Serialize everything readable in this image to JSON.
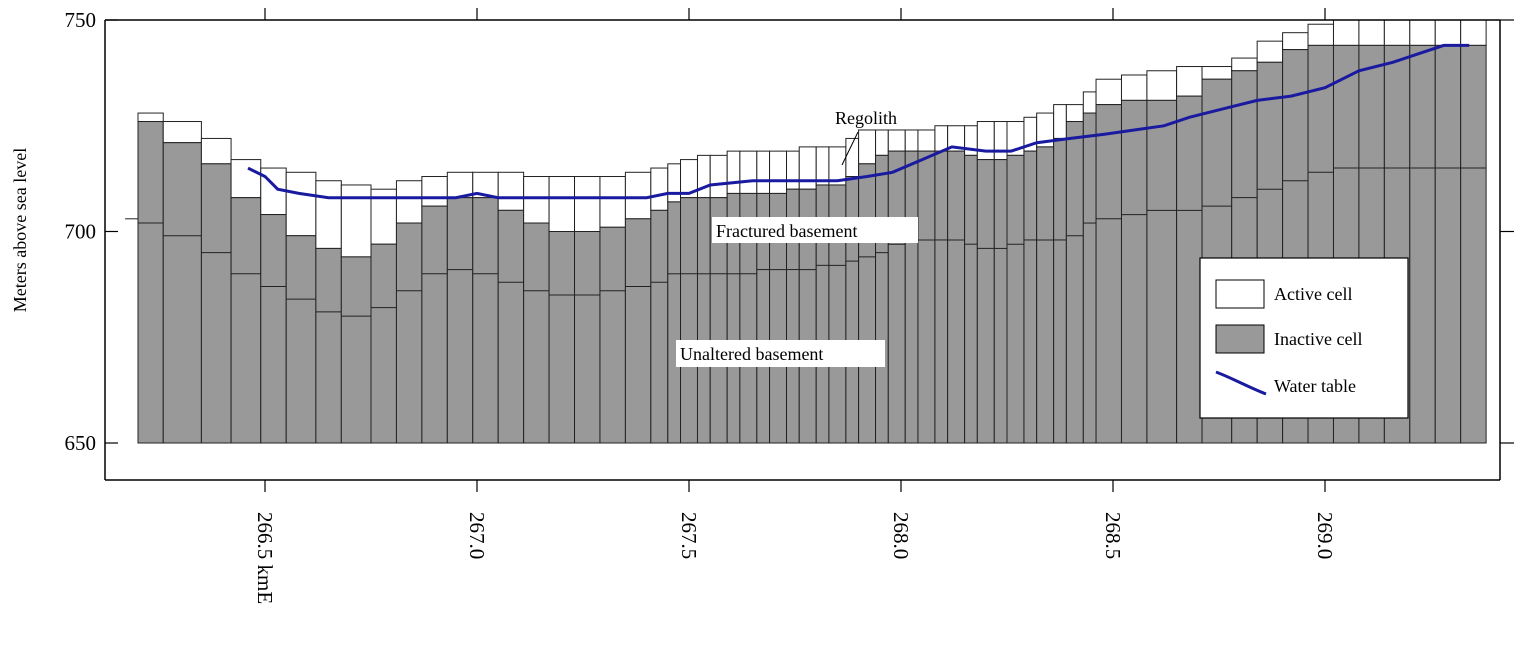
{
  "chart_data": {
    "type": "bar",
    "ylabel": "Meters above sea level",
    "ylim": [
      650,
      750
    ],
    "yticks": [
      650,
      700,
      750
    ],
    "xlim": [
      266.2,
      269.4
    ],
    "xticks": [
      {
        "value": 266.5,
        "label": "266.5 kmE"
      },
      {
        "value": 267.0,
        "label": "267.0"
      },
      {
        "value": 267.5,
        "label": "267.5"
      },
      {
        "value": 268.0,
        "label": "268.0"
      },
      {
        "value": 268.5,
        "label": "268.5"
      },
      {
        "value": 269.0,
        "label": "269.0"
      }
    ],
    "cells": {
      "x_start": [
        266.08,
        266.17,
        266.26,
        266.35,
        266.42,
        266.49,
        266.55,
        266.62,
        266.68,
        266.75,
        266.81,
        266.87,
        266.93,
        266.99,
        267.05,
        267.11,
        267.17,
        267.23,
        267.29,
        267.35,
        267.41,
        267.45,
        267.48,
        267.52,
        267.55,
        267.59,
        267.62,
        267.66,
        267.69,
        267.73,
        267.76,
        267.8,
        267.83,
        267.87,
        267.9,
        267.94,
        267.97,
        268.01,
        268.04,
        268.08,
        268.11,
        268.15,
        268.18,
        268.22,
        268.25,
        268.29,
        268.32,
        268.36,
        268.39,
        268.43,
        268.46,
        268.52,
        268.58,
        268.65,
        268.71,
        268.78,
        268.84,
        268.9,
        268.96,
        269.02,
        269.08,
        269.14,
        269.2,
        269.26,
        269.32
      ],
      "x_end": [
        266.17,
        266.26,
        266.35,
        266.42,
        266.49,
        266.55,
        266.62,
        266.68,
        266.75,
        266.81,
        266.87,
        266.93,
        266.99,
        267.05,
        267.11,
        267.17,
        267.23,
        267.29,
        267.35,
        267.41,
        267.45,
        267.48,
        267.52,
        267.55,
        267.59,
        267.62,
        267.66,
        267.69,
        267.73,
        267.76,
        267.8,
        267.83,
        267.87,
        267.9,
        267.94,
        267.97,
        268.01,
        268.04,
        268.08,
        268.11,
        268.15,
        268.18,
        268.22,
        268.25,
        268.29,
        268.32,
        268.36,
        268.39,
        268.43,
        268.46,
        268.52,
        268.58,
        268.65,
        268.71,
        268.78,
        268.84,
        268.9,
        268.96,
        269.02,
        269.08,
        269.14,
        269.2,
        269.26,
        269.32,
        269.38
      ],
      "surface": [
        729,
        728,
        726,
        722,
        717,
        715,
        714,
        712,
        711,
        710,
        712,
        713,
        714,
        714,
        714,
        713,
        713,
        713,
        713,
        714,
        715,
        716,
        717,
        718,
        718,
        719,
        719,
        719,
        719,
        719,
        720,
        720,
        720,
        722,
        724,
        724,
        724,
        724,
        724,
        725,
        725,
        725,
        726,
        726,
        726,
        727,
        728,
        730,
        730,
        733,
        736,
        737,
        738,
        739,
        739,
        741,
        745,
        747,
        749,
        750,
        750,
        750,
        750,
        750,
        750
      ],
      "inactive_top": [
        727,
        726,
        721,
        716,
        708,
        704,
        699,
        696,
        694,
        697,
        702,
        706,
        708,
        708,
        705,
        702,
        700,
        700,
        701,
        703,
        705,
        707,
        708,
        708,
        708,
        709,
        709,
        709,
        709,
        710,
        710,
        711,
        711,
        713,
        716,
        718,
        719,
        719,
        719,
        719,
        719,
        718,
        717,
        717,
        718,
        719,
        720,
        722,
        726,
        728,
        730,
        731,
        731,
        732,
        736,
        738,
        740,
        743,
        744,
        744,
        744,
        744,
        744,
        744,
        744
      ],
      "fractured_base": [
        703,
        702,
        699,
        695,
        690,
        687,
        684,
        681,
        680,
        682,
        686,
        690,
        691,
        690,
        688,
        686,
        685,
        685,
        686,
        687,
        688,
        690,
        690,
        690,
        690,
        690,
        690,
        691,
        691,
        691,
        691,
        692,
        692,
        693,
        694,
        695,
        697,
        698,
        698,
        698,
        698,
        697,
        696,
        696,
        697,
        698,
        698,
        698,
        699,
        702,
        703,
        704,
        705,
        705,
        706,
        708,
        710,
        712,
        714,
        715,
        715,
        715,
        715,
        715,
        715
      ]
    },
    "water_table": {
      "x": [
        266.46,
        266.5,
        266.53,
        266.58,
        266.65,
        266.75,
        266.85,
        266.95,
        267.0,
        267.05,
        267.12,
        267.2,
        267.3,
        267.4,
        267.45,
        267.5,
        267.55,
        267.65,
        267.75,
        267.85,
        267.92,
        267.98,
        268.05,
        268.12,
        268.2,
        268.26,
        268.32,
        268.4,
        268.48,
        268.55,
        268.62,
        268.68,
        268.76,
        268.84,
        268.92,
        269.0,
        269.08,
        269.16,
        269.22,
        269.28,
        269.34
      ],
      "y": [
        715,
        713,
        710,
        709,
        708,
        708,
        708,
        708,
        709,
        708,
        708,
        708,
        708,
        708,
        709,
        709,
        711,
        712,
        712,
        712,
        713,
        714,
        717,
        720,
        719,
        719,
        721,
        722,
        723,
        724,
        725,
        727,
        729,
        731,
        732,
        734,
        738,
        740,
        742,
        744,
        744
      ]
    },
    "annotations": {
      "regolith": "Regolith",
      "fractured": "Fractured basement",
      "unaltered": "Unaltered basement"
    },
    "legend": {
      "position": "bottom-right",
      "items": [
        {
          "label": "Active cell",
          "swatch": "#ffffff"
        },
        {
          "label": "Inactive cell",
          "swatch": "#999999"
        },
        {
          "label": "Water table",
          "swatch": "#1a1aa0"
        }
      ]
    },
    "colors": {
      "active": "#ffffff",
      "inactive": "#999999",
      "water_table": "#1a1aa0",
      "outline": "#222222"
    }
  }
}
